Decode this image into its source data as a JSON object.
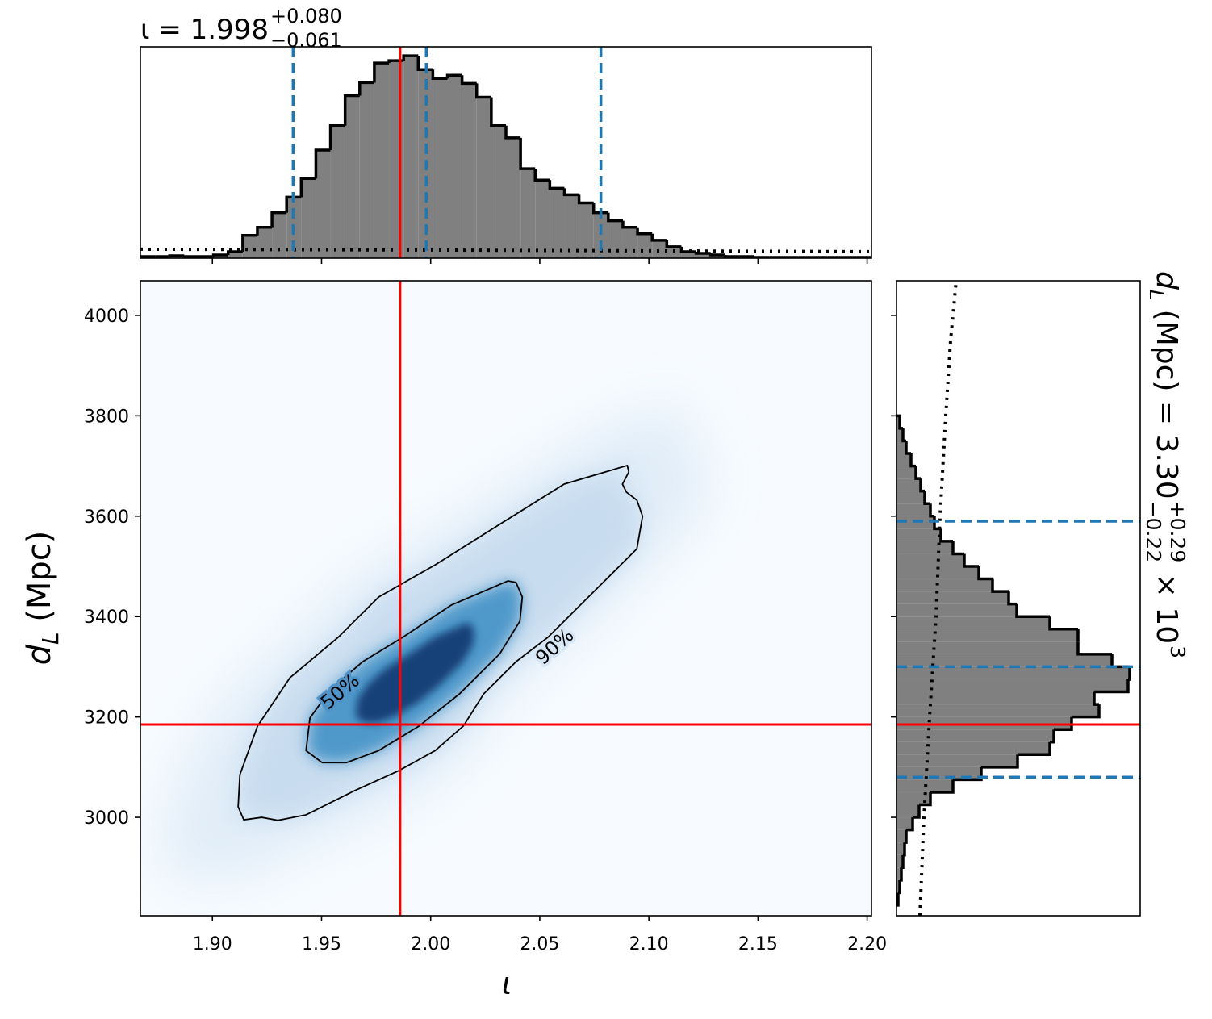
{
  "chart_data": {
    "type": "corner",
    "xlabel": "ι",
    "ylabel": {
      "symbol": "d",
      "subscript": "L",
      "unit": " (Mpc)"
    },
    "xlim": [
      1.867,
      2.202
    ],
    "xticks": [
      {
        "value": 1.9,
        "label": "1.90"
      },
      1.95,
      {
        "value": 2.0,
        "label": "2.00"
      },
      2.05,
      {
        "value": 2.1,
        "label": "2.10"
      },
      2.15,
      {
        "value": 2.2,
        "label": "2.20"
      }
    ],
    "ylim": [
      2804,
      4069
    ],
    "yticks": [
      3000,
      3200,
      3400,
      3600,
      3800,
      4000
    ],
    "injection": {
      "x": 1.986,
      "y": 3185,
      "color": "#ff0000"
    },
    "density": {
      "colors": [
        "#f7fbff",
        "#deebf7",
        "#c6dbef",
        "#4292c6",
        "#08306b"
      ],
      "contours": [
        {
          "label": "50%",
          "x": [
            2.0354,
            2.0095,
            1.9873,
            1.9688,
            1.954,
            1.9447,
            1.9429,
            1.9503,
            1.9614,
            1.9762,
            1.9947,
            2.0132,
            2.0317,
            2.0409,
            2.042,
            2.0391
          ],
          "y": [
            3471,
            3423,
            3359,
            3310,
            3254,
            3198,
            3133,
            3109,
            3109,
            3133,
            3182,
            3246,
            3326,
            3391,
            3439,
            3468
          ]
        },
        {
          "label": "90%",
          "x": [
            2.0901,
            2.0612,
            2.0317,
            2.0021,
            1.9762,
            1.9577,
            1.9355,
            1.9207,
            1.9126,
            1.9118,
            1.9144,
            1.9226,
            1.93,
            1.9429,
            1.9651,
            1.9854,
            2.0021,
            2.015,
            2.0243,
            2.0391,
            2.0538,
            2.0686,
            2.0834,
            2.0945,
            2.0971,
            2.0945,
            2.0897,
            2.0879,
            2.0908
          ],
          "y": [
            3701,
            3664,
            3584,
            3503,
            3439,
            3359,
            3278,
            3182,
            3085,
            3021,
            2995,
            3000,
            2994,
            3005,
            3053,
            3093,
            3133,
            3182,
            3246,
            3310,
            3359,
            3423,
            3487,
            3535,
            3600,
            3632,
            3648,
            3664,
            3688
          ]
        }
      ]
    },
    "top_hist": {
      "fill": "#808080",
      "edge_color": "#000000",
      "quantile_color": "#1f77b4",
      "ylim": [
        0,
        260
      ],
      "bins": [
        1.867,
        1.8737,
        1.8804,
        1.8871,
        1.8938,
        1.9005,
        1.9072,
        1.9139,
        1.9206,
        1.9273,
        1.934,
        1.9407,
        1.9474,
        1.9541,
        1.9608,
        1.9675,
        1.9742,
        1.9809,
        1.9876,
        1.9943,
        2.001,
        2.0077,
        2.0144,
        2.0211,
        2.0278,
        2.0345,
        2.0412,
        2.0479,
        2.0546,
        2.0613,
        2.068,
        2.0747,
        2.0814,
        2.0881,
        2.0948,
        2.1015,
        2.1082,
        2.1149,
        2.1216,
        2.1283,
        2.135,
        2.1417,
        2.1484,
        2.1551,
        2.1618,
        2.1685,
        2.1752,
        2.1819,
        2.1886,
        2.1953,
        2.202
      ],
      "values": [
        2,
        2,
        3,
        2,
        2,
        4,
        8,
        28,
        38,
        56,
        75,
        98,
        133,
        163,
        200,
        216,
        240,
        243,
        249,
        232,
        221,
        225,
        215,
        198,
        163,
        148,
        110,
        96,
        86,
        78,
        68,
        56,
        46,
        38,
        30,
        22,
        14,
        8,
        6,
        4,
        2,
        2,
        1,
        1,
        1,
        1,
        1,
        1,
        1,
        1
      ],
      "quantiles": [
        1.937,
        1.998,
        2.078
      ],
      "prior": {
        "x": [
          1.867,
          2.0,
          2.202
        ],
        "values": [
          11,
          10,
          8
        ]
      },
      "title": {
        "lead": "ι = ",
        "median": "1.998",
        "plus": "+0.080",
        "minus": "−0.061"
      }
    },
    "right_hist": {
      "fill": "#808080",
      "edge_color": "#000000",
      "quantile_color": "#1f77b4",
      "xlim": [
        0,
        302
      ],
      "bins": [
        2825,
        2850,
        2875,
        2900,
        2925,
        2950,
        2975,
        3000,
        3025,
        3050,
        3075,
        3100,
        3125,
        3150,
        3175,
        3200,
        3225,
        3250,
        3275,
        3300,
        3325,
        3350,
        3375,
        3400,
        3425,
        3450,
        3475,
        3500,
        3525,
        3550,
        3575,
        3600,
        3625,
        3650,
        3675,
        3700,
        3725,
        3750,
        3775,
        3800
      ],
      "values": [
        2,
        4,
        6,
        8,
        10,
        12,
        20,
        28,
        42,
        70,
        105,
        150,
        190,
        195,
        217,
        251,
        245,
        287,
        289,
        267,
        225,
        225,
        190,
        149,
        139,
        119,
        102,
        84,
        70,
        55,
        47,
        42,
        35,
        30,
        24,
        18,
        12,
        8,
        4
      ],
      "quantiles": [
        3080,
        3300,
        3590
      ],
      "prior": {
        "y": [
          2804,
          3000,
          3200,
          3400,
          3600,
          3800,
          3950,
          4069
        ],
        "values": [
          29,
          34,
          41,
          49,
          54,
          61,
          67,
          74
        ]
      },
      "title": {
        "symbol": "d",
        "subscript": "L",
        "lead": " (Mpc) = 3.30",
        "plus": "+0.29",
        "minus": "−0.22",
        "times": " × 10",
        "exponent": "3"
      }
    }
  }
}
